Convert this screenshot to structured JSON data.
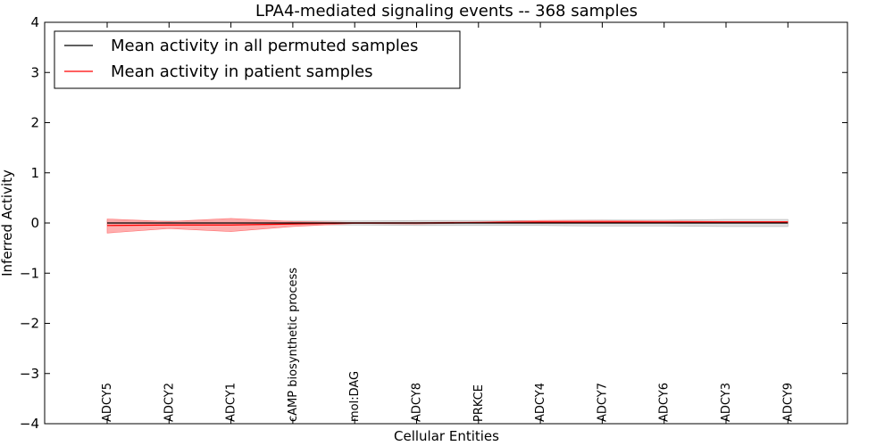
{
  "chart_data": {
    "type": "line",
    "title": "LPA4-mediated signaling events -- 368 samples",
    "xlabel": "Cellular Entities",
    "ylabel": "Inferred Activity",
    "ylim": [
      -4,
      4
    ],
    "yticks": [
      -4,
      -3,
      -2,
      -1,
      0,
      1,
      2,
      3,
      4
    ],
    "ytick_labels": [
      "−4",
      "−3",
      "−2",
      "−1",
      "0",
      "1",
      "2",
      "3",
      "4"
    ],
    "categories": [
      "ADCY5",
      "ADCY2",
      "ADCY1",
      "cAMP biosynthetic process",
      "mol:DAG",
      "ADCY8",
      "PRKCE",
      "ADCY4",
      "ADCY7",
      "ADCY6",
      "ADCY3",
      "ADCY9"
    ],
    "series": [
      {
        "name": "Mean activity in all permuted samples",
        "color": "#000000",
        "values": [
          0,
          0,
          0,
          0,
          0,
          0,
          0,
          0,
          0,
          0,
          0,
          0
        ],
        "band_upper": [
          0.04,
          0.04,
          0.04,
          0.04,
          0.04,
          0.05,
          0.05,
          0.05,
          0.06,
          0.06,
          0.07,
          0.07
        ],
        "band_lower": [
          -0.04,
          -0.04,
          -0.04,
          -0.04,
          -0.04,
          -0.05,
          -0.05,
          -0.05,
          -0.06,
          -0.06,
          -0.07,
          -0.07
        ],
        "band_color": "#cccccc"
      },
      {
        "name": "Mean activity in patient samples",
        "color": "#ff0000",
        "values": [
          -0.05,
          -0.04,
          -0.04,
          -0.02,
          0,
          0,
          0.01,
          0.02,
          0.02,
          0.02,
          0.02,
          0.02
        ],
        "band_upper": [
          0.08,
          0.03,
          0.09,
          0.03,
          0.01,
          0.01,
          0.02,
          0.05,
          0.05,
          0.04,
          0.03,
          0.03
        ],
        "band_lower": [
          -0.2,
          -0.11,
          -0.17,
          -0.07,
          -0.01,
          -0.02,
          0,
          0,
          0,
          0,
          0,
          0
        ],
        "band_color": "#ff9a9a"
      }
    ],
    "legend": {
      "location": "top-left",
      "entries": [
        "Mean activity in all permuted samples",
        "Mean activity in patient samples"
      ]
    }
  }
}
